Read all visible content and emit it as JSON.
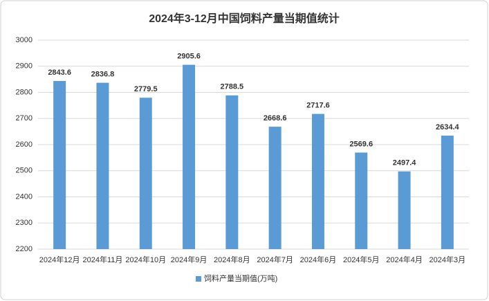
{
  "chart_data": {
    "type": "bar",
    "title": "2024年3-12月中国饲料产量当期值统计",
    "categories": [
      "2024年12月",
      "2024年11月",
      "2024年10月",
      "2024年9月",
      "2024年8月",
      "2024年7月",
      "2024年6月",
      "2024年5月",
      "2024年4月",
      "2024年3月"
    ],
    "series": [
      {
        "name": "饲料产量当期值(万吨)",
        "color": "#5b9bd5",
        "values": [
          2843.6,
          2836.8,
          2779.5,
          2905.6,
          2788.5,
          2668.6,
          2717.6,
          2569.6,
          2497.4,
          2634.4
        ]
      }
    ],
    "ylim": [
      2200,
      3000
    ],
    "yticks": [
      2200,
      2300,
      2400,
      2500,
      2600,
      2700,
      2800,
      2900,
      3000
    ],
    "grid": true,
    "legend": "bottom"
  }
}
